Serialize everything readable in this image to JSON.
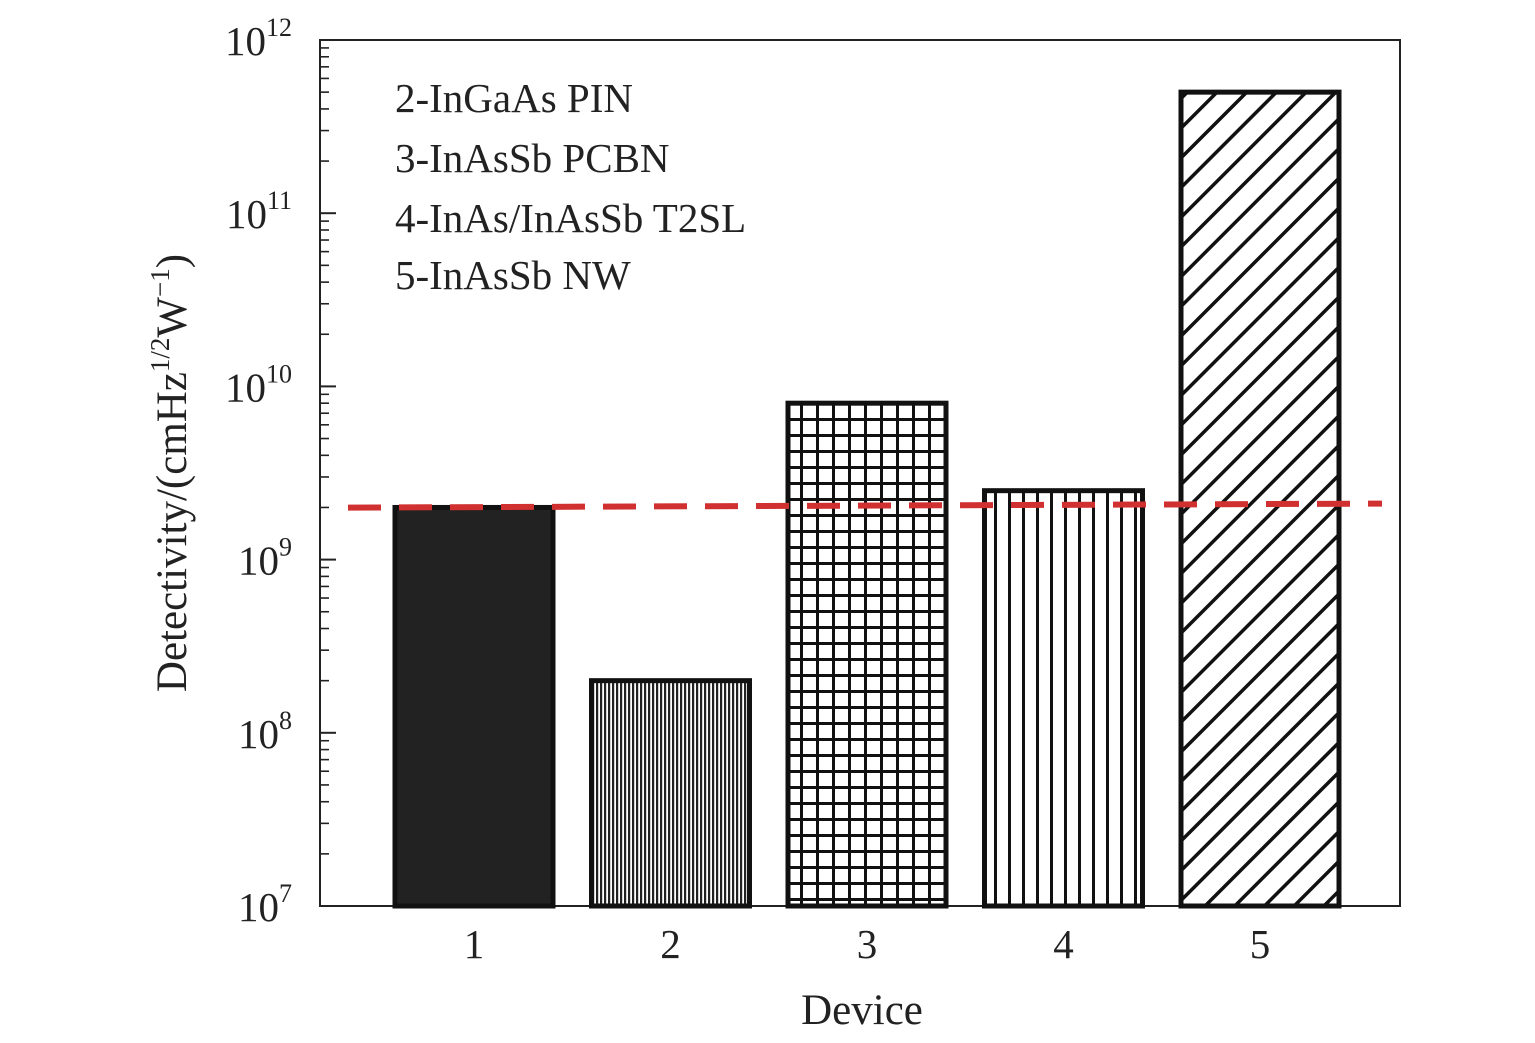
{
  "chart_data": {
    "type": "bar",
    "xlabel": "Device",
    "ylabel": "Detectivity/(cmHz",
    "ylabel_sup1": "1/2",
    "ylabel_mid": "W",
    "ylabel_sup2": "−1",
    "ylabel_end": ")",
    "yscale": "log",
    "ylim": [
      10000000,
      1000000000000
    ],
    "y_ticks": [
      {
        "base": "10",
        "exp": "7",
        "value": 10000000
      },
      {
        "base": "10",
        "exp": "8",
        "value": 100000000
      },
      {
        "base": "10",
        "exp": "9",
        "value": 1000000000
      },
      {
        "base": "10",
        "exp": "10",
        "value": 10000000000
      },
      {
        "base": "10",
        "exp": "11",
        "value": 100000000000
      },
      {
        "base": "10",
        "exp": "12",
        "value": 1000000000000
      }
    ],
    "categories": [
      "1",
      "2",
      "3",
      "4",
      "5"
    ],
    "values": [
      2000000000,
      200000000,
      8000000000,
      2500000000,
      500000000000
    ],
    "bar_patterns": [
      "solid-dark",
      "fine-vertical",
      "grid",
      "vertical",
      "diagonal"
    ],
    "reference_line": {
      "value": 2050000000,
      "style": "dashed",
      "color": "#d03030"
    },
    "legend": {
      "placement": "top-left",
      "entries": [
        "2-InGaAs PIN",
        "3-InAsSb PCBN",
        "4-InAs/InAsSb T2SL",
        "5-InAsSb NW"
      ]
    },
    "grid": false,
    "colors": {
      "bar_stroke": "#111111",
      "dark_fill": "#222222",
      "reference": "#d03030"
    }
  }
}
